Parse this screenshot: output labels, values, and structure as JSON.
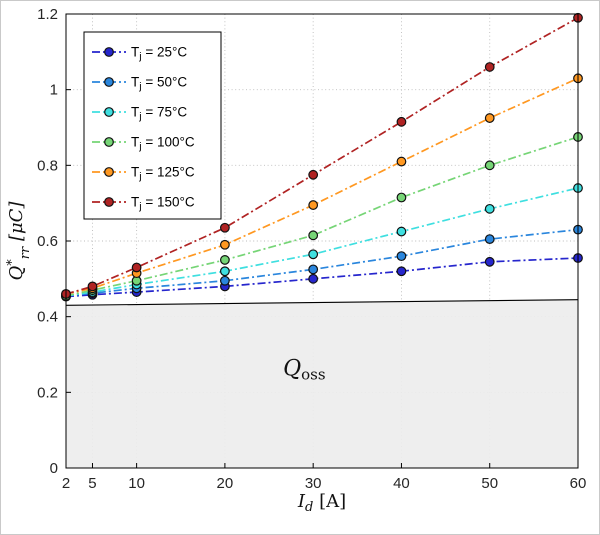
{
  "chart_data": {
    "type": "line",
    "title": "",
    "xlabel": {
      "main": "I",
      "sub": "d",
      "unit": " [A]"
    },
    "ylabel": {
      "main": "Q",
      "sup": "*",
      "sub": "rr",
      "unit": " [μC]"
    },
    "x": [
      2,
      5,
      10,
      20,
      30,
      40,
      50,
      60
    ],
    "x_tick_labels": [
      "2",
      "5",
      "10",
      "20",
      "30",
      "40",
      "50",
      "60"
    ],
    "xlim": [
      2,
      60
    ],
    "y_ticks": [
      0,
      0.2,
      0.4,
      0.6,
      0.8,
      1,
      1.2
    ],
    "y_tick_labels": [
      "0",
      "0.2",
      "0.4",
      "0.6",
      "0.8",
      "1",
      "1.2"
    ],
    "ylim": [
      0,
      1.2
    ],
    "grid": true,
    "line_style": "dash-dot",
    "marker": "circle",
    "marker_edge_color": "#111111",
    "legend_position": "top-left",
    "series": [
      {
        "label": "T_j = 25°C",
        "label_parts": {
          "pre": "T",
          "sub": "j",
          "post": " = 25°C"
        },
        "color": "#2626cd",
        "values": [
          0.453,
          0.458,
          0.465,
          0.48,
          0.5,
          0.52,
          0.545,
          0.555
        ]
      },
      {
        "label": "T_j = 50°C",
        "label_parts": {
          "pre": "T",
          "sub": "j",
          "post": " = 50°C"
        },
        "color": "#2a86dd",
        "values": [
          0.455,
          0.462,
          0.475,
          0.495,
          0.525,
          0.56,
          0.605,
          0.63
        ]
      },
      {
        "label": "T_j = 75°C",
        "label_parts": {
          "pre": "T",
          "sub": "j",
          "post": " = 75°C"
        },
        "color": "#3fdfe0",
        "values": [
          0.455,
          0.465,
          0.485,
          0.52,
          0.565,
          0.625,
          0.685,
          0.74
        ]
      },
      {
        "label": "T_j = 100°C",
        "label_parts": {
          "pre": "T",
          "sub": "j",
          "post": " = 100°C"
        },
        "color": "#76d576",
        "values": [
          0.455,
          0.47,
          0.495,
          0.55,
          0.615,
          0.715,
          0.8,
          0.875
        ]
      },
      {
        "label": "T_j = 125°C",
        "label_parts": {
          "pre": "T",
          "sub": "j",
          "post": " = 125°C"
        },
        "color": "#ff9821",
        "values": [
          0.46,
          0.475,
          0.515,
          0.59,
          0.695,
          0.81,
          0.925,
          1.03
        ]
      },
      {
        "label": "T_j = 150°C",
        "label_parts": {
          "pre": "T",
          "sub": "j",
          "post": " = 150°C"
        },
        "color": "#b02323",
        "values": [
          0.46,
          0.48,
          0.53,
          0.635,
          0.775,
          0.915,
          1.06,
          1.19
        ]
      }
    ],
    "region": {
      "label": "Q_oss",
      "label_parts": {
        "pre": "Q",
        "sub": "oss"
      },
      "x": [
        2,
        60
      ],
      "top": [
        0.43,
        0.445
      ],
      "bottom": 0,
      "fill": "#ececec",
      "border": "#000000"
    }
  }
}
